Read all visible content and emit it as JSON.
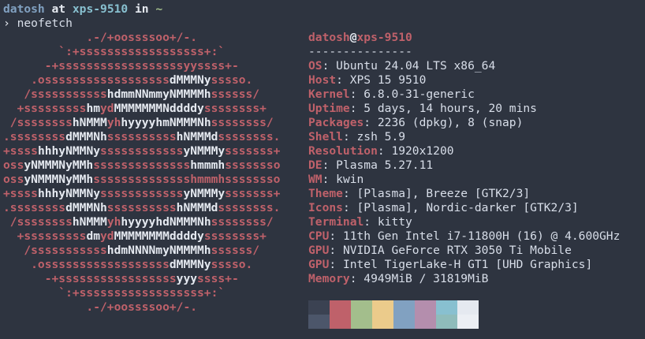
{
  "prompt": {
    "user": "datosh",
    "at": "at",
    "host": "xps-9510",
    "in": "in",
    "dir": "~",
    "symbol": "›",
    "command": "neofetch",
    "colors": {
      "user": "#81a1c1",
      "host": "#88c0d0",
      "dir": "#a3be8c",
      "text": "#e5e9f0"
    }
  },
  "colors": {
    "red": "#bf616a",
    "white": "#e5e9f0",
    "background": "#2e3440"
  },
  "ascii_art": [
    [
      [
        "            .-/+oossssoo+/-.",
        "r"
      ]
    ],
    [
      [
        "        `:+ssssssssssssssssss+:`",
        "r"
      ]
    ],
    [
      [
        "      -+ssssssssssssssssssyyssss+-",
        "r"
      ]
    ],
    [
      [
        "    .ossssssssssssssssss",
        "r"
      ],
      [
        "dMMMNy",
        "w"
      ],
      [
        "sssso.",
        "r"
      ]
    ],
    [
      [
        "   /sssssssssss",
        "r"
      ],
      [
        "hdmmNNmmyNMMMMh",
        "w"
      ],
      [
        "ssssss/",
        "r"
      ]
    ],
    [
      [
        "  +sssssssss",
        "r"
      ],
      [
        "hm",
        "w"
      ],
      [
        "yd",
        "r"
      ],
      [
        "MMMMMMMNddddy",
        "w"
      ],
      [
        "ssssssss+",
        "r"
      ]
    ],
    [
      [
        " /ssssssss",
        "r"
      ],
      [
        "hNMMM",
        "w"
      ],
      [
        "yh",
        "r"
      ],
      [
        "hyyyyhmNMMMNh",
        "w"
      ],
      [
        "ssssssss/",
        "r"
      ]
    ],
    [
      [
        ".ssssssss",
        "r"
      ],
      [
        "dMMMNh",
        "w"
      ],
      [
        "ssssssssss",
        "r"
      ],
      [
        "hNMMMd",
        "w"
      ],
      [
        "ssssssss.",
        "r"
      ]
    ],
    [
      [
        "+ssss",
        "r"
      ],
      [
        "hhhyNMMNy",
        "w"
      ],
      [
        "ssssssssssss",
        "r"
      ],
      [
        "yNMMMy",
        "w"
      ],
      [
        "sssssss+",
        "r"
      ]
    ],
    [
      [
        "oss",
        "r"
      ],
      [
        "yNMMMNyMMh",
        "w"
      ],
      [
        "ssssssssssssss",
        "r"
      ],
      [
        "hmmmh",
        "w"
      ],
      [
        "ssssssso",
        "r"
      ]
    ],
    [
      [
        "oss",
        "r"
      ],
      [
        "yNMMMNyMMh",
        "w"
      ],
      [
        "sssssssssssssshmmmhssssssso",
        "r"
      ]
    ],
    [
      [
        "+ssss",
        "r"
      ],
      [
        "hhhyNMMNy",
        "w"
      ],
      [
        "ssssssssssss",
        "r"
      ],
      [
        "yNMMMy",
        "w"
      ],
      [
        "sssssss+",
        "r"
      ]
    ],
    [
      [
        ".ssssssss",
        "r"
      ],
      [
        "dMMMNh",
        "w"
      ],
      [
        "ssssssssss",
        "r"
      ],
      [
        "hNMMMd",
        "w"
      ],
      [
        "ssssssss.",
        "r"
      ]
    ],
    [
      [
        " /ssssssss",
        "r"
      ],
      [
        "hNMMM",
        "w"
      ],
      [
        "yh",
        "r"
      ],
      [
        "hyyyyhdNMMMNh",
        "w"
      ],
      [
        "ssssssss/",
        "r"
      ]
    ],
    [
      [
        "  +sssssssss",
        "r"
      ],
      [
        "dm",
        "w"
      ],
      [
        "yd",
        "r"
      ],
      [
        "MMMMMMMMddddy",
        "w"
      ],
      [
        "ssssssss+",
        "r"
      ]
    ],
    [
      [
        "   /sssssssssss",
        "r"
      ],
      [
        "hdmNNNNmyNMMMMh",
        "w"
      ],
      [
        "ssssss/",
        "r"
      ]
    ],
    [
      [
        "    .ossssssssssssssssss",
        "r"
      ],
      [
        "dMMMNy",
        "w"
      ],
      [
        "sssso.",
        "r"
      ]
    ],
    [
      [
        "      -+sssssssssssssssss",
        "r"
      ],
      [
        "yyy",
        "w"
      ],
      [
        "ssss+-",
        "r"
      ]
    ],
    [
      [
        "        `:+ssssssssssssssssss+:`",
        "r"
      ]
    ],
    [
      [
        "            .-/+oossssoo+/-.",
        "r"
      ]
    ]
  ],
  "info": {
    "title_user": "datosh",
    "title_at": "@",
    "title_host": "xps-9510",
    "separator": "---------------",
    "fields": [
      {
        "label": "OS",
        "value": "Ubuntu 24.04 LTS x86_64"
      },
      {
        "label": "Host",
        "value": "XPS 15 9510"
      },
      {
        "label": "Kernel",
        "value": "6.8.0-31-generic"
      },
      {
        "label": "Uptime",
        "value": "5 days, 14 hours, 20 mins"
      },
      {
        "label": "Packages",
        "value": "2236 (dpkg), 8 (snap)"
      },
      {
        "label": "Shell",
        "value": "zsh 5.9"
      },
      {
        "label": "Resolution",
        "value": "1920x1200"
      },
      {
        "label": "DE",
        "value": "Plasma 5.27.11"
      },
      {
        "label": "WM",
        "value": "kwin"
      },
      {
        "label": "Theme",
        "value": "[Plasma], Breeze [GTK2/3]"
      },
      {
        "label": "Icons",
        "value": "[Plasma], Nordic-darker [GTK2/3]"
      },
      {
        "label": "Terminal",
        "value": "kitty"
      },
      {
        "label": "CPU",
        "value": "11th Gen Intel i7-11800H (16) @ 4.600GHz"
      },
      {
        "label": "GPU",
        "value": "NVIDIA GeForce RTX 3050 Ti Mobile"
      },
      {
        "label": "GPU",
        "value": "Intel TigerLake-H GT1 [UHD Graphics]"
      },
      {
        "label": "Memory",
        "value": "4949MiB / 31819MiB"
      }
    ],
    "label_separator": ": "
  },
  "palette": [
    [
      "#3b4252",
      "#bf616a",
      "#a3be8c",
      "#ebcb8b",
      "#81a1c1",
      "#b48ead",
      "#88c0d0",
      "#e5e9f0"
    ],
    [
      "#4c566a",
      "#bf616a",
      "#a3be8c",
      "#ebcb8b",
      "#81a1c1",
      "#b48ead",
      "#8fbcbb",
      "#eceff4"
    ]
  ]
}
